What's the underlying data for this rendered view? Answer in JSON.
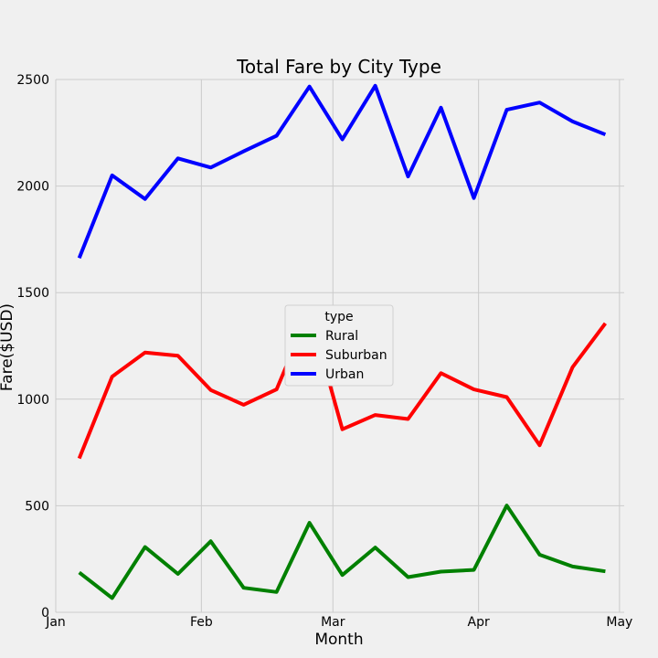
{
  "chart_data": {
    "type": "line",
    "title": "Total Fare by City Type",
    "xlabel": "Month",
    "ylabel": "Fare($USD)",
    "ylim": [
      0,
      2500
    ],
    "xlim": [
      "2019-01-01",
      "2019-05-02"
    ],
    "yticks": [
      0,
      500,
      1000,
      1500,
      2000,
      2500
    ],
    "xticks": [
      {
        "date": "2019-01-01",
        "label": "Jan"
      },
      {
        "date": "2019-02-01",
        "label": "Feb"
      },
      {
        "date": "2019-03-01",
        "label": "Mar"
      },
      {
        "date": "2019-04-01",
        "label": "Apr"
      },
      {
        "date": "2019-05-01",
        "label": "May"
      }
    ],
    "grid": true,
    "legend": {
      "title": "type",
      "placement": "center"
    },
    "x": [
      "2019-01-06",
      "2019-01-13",
      "2019-01-20",
      "2019-01-27",
      "2019-02-03",
      "2019-02-10",
      "2019-02-17",
      "2019-02-24",
      "2019-03-03",
      "2019-03-10",
      "2019-03-17",
      "2019-03-24",
      "2019-03-31",
      "2019-04-07",
      "2019-04-14",
      "2019-04-21",
      "2019-04-28"
    ],
    "series": [
      {
        "name": "Rural",
        "color": "#008000",
        "values": [
          187,
          67,
          306,
          180,
          333,
          115,
          95,
          420,
          175,
          304,
          165,
          191,
          199,
          501,
          270,
          215,
          192
        ]
      },
      {
        "name": "Suburban",
        "color": "#ff0000",
        "values": [
          722,
          1106,
          1219,
          1204,
          1043,
          974,
          1046,
          1412,
          859,
          926,
          907,
          1122,
          1046,
          1010,
          784,
          1150,
          1356
        ]
      },
      {
        "name": "Urban",
        "color": "#0000ff",
        "values": [
          1662,
          2050,
          1939,
          2130,
          2087,
          2163,
          2236,
          2467,
          2219,
          2471,
          2045,
          2368,
          1944,
          2358,
          2392,
          2303,
          2242
        ]
      }
    ]
  }
}
